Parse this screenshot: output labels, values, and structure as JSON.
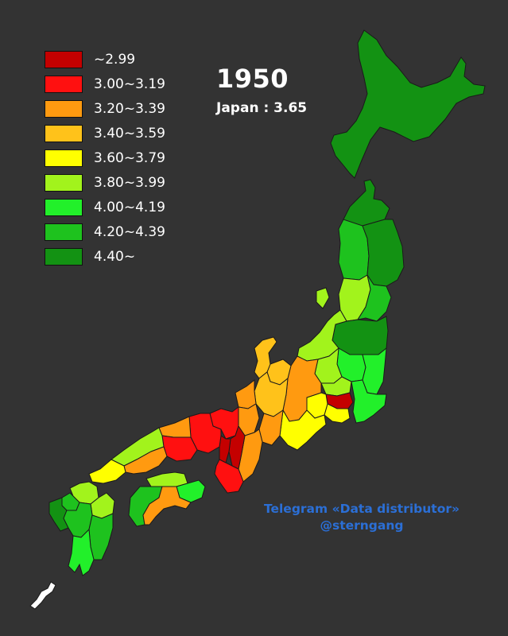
{
  "title": {
    "year": "1950",
    "subtitle": "Japan : 3.65"
  },
  "legend": [
    {
      "label": "~2.99",
      "color": "#c40000"
    },
    {
      "label": "3.00~3.19",
      "color": "#ff1010"
    },
    {
      "label": "3.20~3.39",
      "color": "#ff9a10"
    },
    {
      "label": "3.40~3.59",
      "color": "#ffc21a"
    },
    {
      "label": "3.60~3.79",
      "color": "#ffff00"
    },
    {
      "label": "3.80~3.99",
      "color": "#a2f31c"
    },
    {
      "label": "4.00~4.19",
      "color": "#22f02a"
    },
    {
      "label": "4.20~4.39",
      "color": "#1ec21e"
    },
    {
      "label": "4.40~",
      "color": "#139213"
    }
  ],
  "watermark": {
    "line1": "Telegram «Data distributor»",
    "line2": "@sterngang"
  },
  "colors": {
    "background": "#333333",
    "border": "#1a1a1a",
    "watermark": "#2b6fd6"
  }
}
